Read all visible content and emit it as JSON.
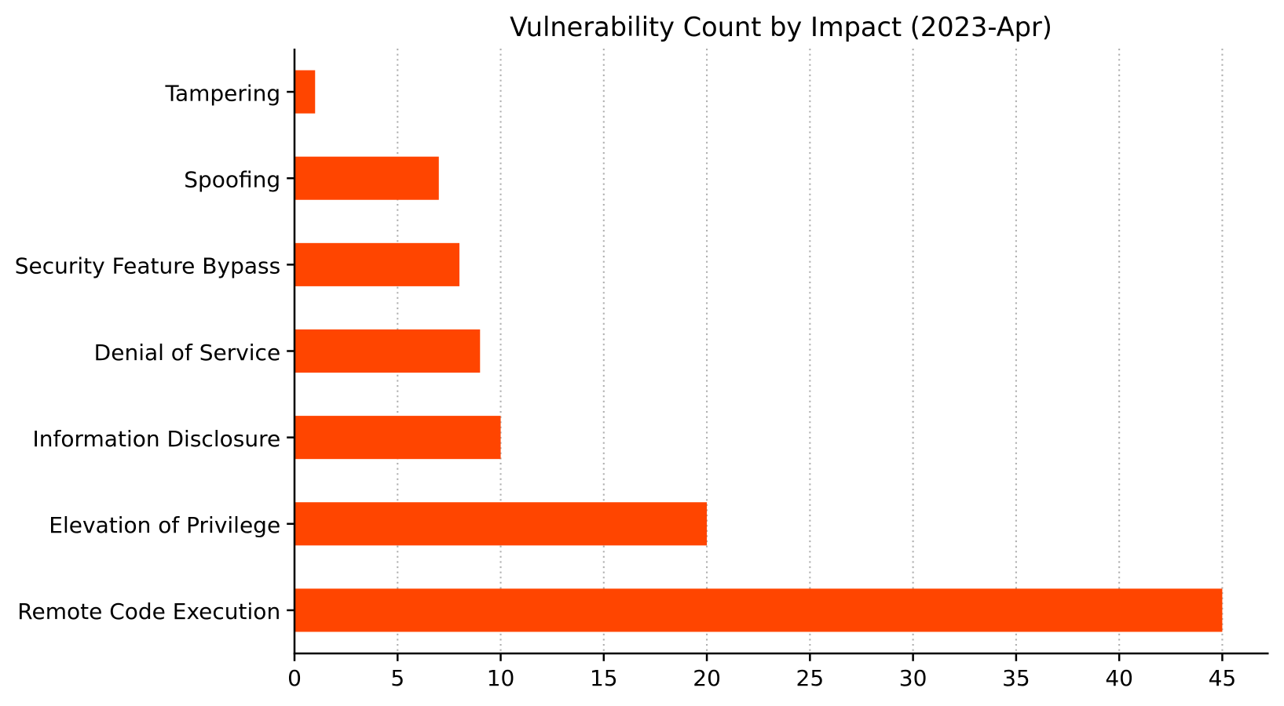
{
  "chart_data": {
    "type": "bar",
    "orientation": "horizontal",
    "title": "Vulnerability Count by Impact (2023-Apr)",
    "categories": [
      "Tampering",
      "Spoofing",
      "Security Feature Bypass",
      "Denial of Service",
      "Information Disclosure",
      "Elevation of Privilege",
      "Remote Code Execution"
    ],
    "values": [
      1,
      7,
      8,
      9,
      10,
      20,
      45
    ],
    "xlabel": "",
    "ylabel": "",
    "xticks": [
      0,
      5,
      10,
      15,
      20,
      25,
      30,
      35,
      40,
      45
    ],
    "xlim": [
      0,
      47.25
    ],
    "bar_color": "#ff4500",
    "grid": true,
    "grid_color": "#b0b0b0",
    "grid_style": "dotted",
    "legend": false,
    "axis_color": "#000000",
    "text_color": "#000000",
    "background_color": "#ffffff"
  }
}
